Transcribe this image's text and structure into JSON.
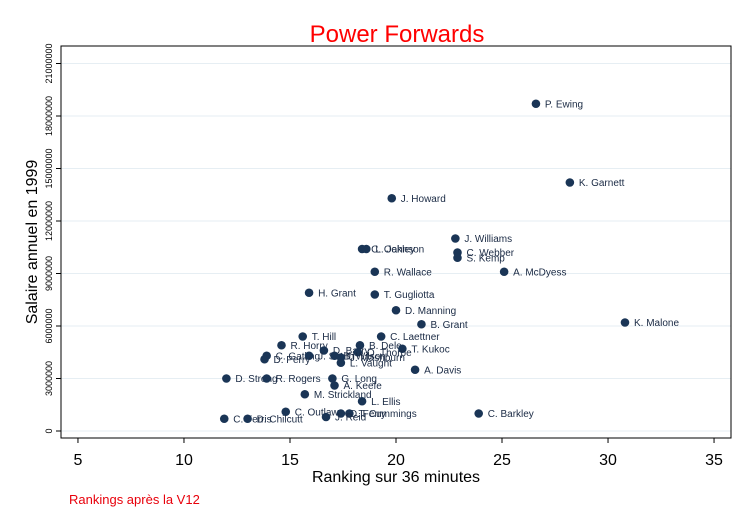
{
  "chart_data": {
    "type": "scatter",
    "title": "Power Forwards",
    "xlabel": "Ranking sur 36 minutes",
    "ylabel": "Salaire annuel en 1999",
    "note": "Rankings après la V12",
    "xlim": [
      4.2,
      35.8
    ],
    "ylim": [
      -400000,
      22000000
    ],
    "xticks": [
      5,
      10,
      15,
      20,
      25,
      30,
      35
    ],
    "yticks": [
      0,
      3000000,
      6000000,
      9000000,
      12000000,
      15000000,
      18000000,
      21000000
    ],
    "grid": true,
    "colors": {
      "title": "#ff0000",
      "note": "#e8000b",
      "marker": "#1a3556",
      "grid": "#e6eef3",
      "plot_border": "#000000"
    },
    "points": [
      {
        "label": "P. Ewing",
        "x": 26.6,
        "y": 18700000
      },
      {
        "label": "K. Garnett",
        "x": 28.2,
        "y": 14200000
      },
      {
        "label": "J. Howard",
        "x": 19.8,
        "y": 13300000
      },
      {
        "label": "J. Williams",
        "x": 22.8,
        "y": 11000000
      },
      {
        "label": "C. Webber",
        "x": 22.9,
        "y": 10200000
      },
      {
        "label": "S. Kemp",
        "x": 22.9,
        "y": 9900000
      },
      {
        "label": "L. Johnson",
        "x": 18.6,
        "y": 10400000
      },
      {
        "label": "C. Oakley",
        "x": 18.4,
        "y": 10400000
      },
      {
        "label": "R. Wallace",
        "x": 19.0,
        "y": 9100000
      },
      {
        "label": "A. McDyess",
        "x": 25.1,
        "y": 9100000
      },
      {
        "label": "H. Grant",
        "x": 15.9,
        "y": 7900000
      },
      {
        "label": "T. Gugliotta",
        "x": 19.0,
        "y": 7800000
      },
      {
        "label": "D. Manning",
        "x": 20.0,
        "y": 6900000
      },
      {
        "label": "B. Grant",
        "x": 21.2,
        "y": 6100000
      },
      {
        "label": "K. Malone",
        "x": 30.8,
        "y": 6200000
      },
      {
        "label": "T. Hill",
        "x": 15.6,
        "y": 5400000
      },
      {
        "label": "C. Laettner",
        "x": 19.3,
        "y": 5400000
      },
      {
        "label": "R. Horry",
        "x": 14.6,
        "y": 4900000
      },
      {
        "label": "B. Dele",
        "x": 18.3,
        "y": 4900000
      },
      {
        "label": "T. Kukoc",
        "x": 20.3,
        "y": 4700000
      },
      {
        "label": "D. Barry",
        "x": 16.6,
        "y": 4600000
      },
      {
        "label": "O. Thorpe",
        "x": 18.2,
        "y": 4500000
      },
      {
        "label": "C. Gatling",
        "x": 13.9,
        "y": 4300000
      },
      {
        "label": "J. Smith",
        "x": 15.9,
        "y": 4300000
      },
      {
        "label": "B. Wilson",
        "x": 17.1,
        "y": 4300000
      },
      {
        "label": "J. Mashburn",
        "x": 17.4,
        "y": 4200000
      },
      {
        "label": "D. Perry",
        "x": 13.8,
        "y": 4100000
      },
      {
        "label": "L. Vaught",
        "x": 17.4,
        "y": 3900000
      },
      {
        "label": "A. Davis",
        "x": 20.9,
        "y": 3500000
      },
      {
        "label": "D. Strong",
        "x": 12.0,
        "y": 3000000
      },
      {
        "label": "R. Rogers",
        "x": 13.9,
        "y": 3000000
      },
      {
        "label": "G. Long",
        "x": 17.0,
        "y": 3000000
      },
      {
        "label": "A. Keefe",
        "x": 17.1,
        "y": 2600000
      },
      {
        "label": "M. Strickland",
        "x": 15.7,
        "y": 2100000
      },
      {
        "label": "L. Ellis",
        "x": 18.4,
        "y": 1700000
      },
      {
        "label": "C. Outlaw",
        "x": 14.8,
        "y": 1100000
      },
      {
        "label": "D. Ferry",
        "x": 17.4,
        "y": 1000000
      },
      {
        "label": "T. Cummings",
        "x": 17.8,
        "y": 1000000
      },
      {
        "label": "C. Barkley",
        "x": 23.9,
        "y": 1000000
      },
      {
        "label": "J. Reid",
        "x": 16.7,
        "y": 800000
      },
      {
        "label": "C. Ferris",
        "x": 11.9,
        "y": 700000
      },
      {
        "label": "D. Chilcutt",
        "x": 13.0,
        "y": 700000
      }
    ]
  }
}
